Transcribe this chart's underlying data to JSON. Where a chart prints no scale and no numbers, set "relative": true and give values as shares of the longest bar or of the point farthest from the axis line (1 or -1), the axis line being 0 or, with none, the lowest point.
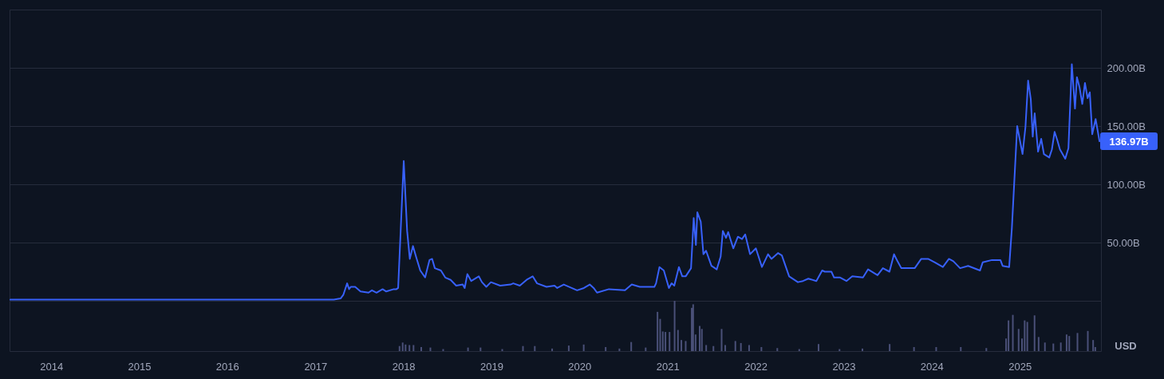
{
  "chart_data": [
    {
      "type": "line",
      "xlim": [
        "2013-07-29",
        "2025-11-17"
      ],
      "ylim": [
        0,
        250
      ],
      "yticks": [
        {
          "value": 50,
          "label": "50.00B"
        },
        {
          "value": 100,
          "label": "100.00B"
        },
        {
          "value": 150,
          "label": "150.00B"
        },
        {
          "value": 200,
          "label": "200.00B"
        }
      ],
      "grid": "y",
      "tick_labels": "y",
      "x": [
        "2013-08-01",
        "2014-06-01",
        "2015-01-01",
        "2016-01-01",
        "2016-09-01",
        "2017-03-25",
        "2017-04-22",
        "2017-05-03",
        "2017-05-19",
        "2017-05-27",
        "2017-06-03",
        "2017-06-21",
        "2017-07-13",
        "2017-08-15",
        "2017-08-29",
        "2017-09-17",
        "2017-10-12",
        "2017-10-27",
        "2017-11-27",
        "2017-12-08",
        "2017-12-15",
        "2018-01-07",
        "2018-01-21",
        "2018-02-01",
        "2018-02-14",
        "2018-02-28",
        "2018-03-16",
        "2018-04-05",
        "2018-04-23",
        "2018-05-04",
        "2018-05-15",
        "2018-06-09",
        "2018-06-27",
        "2018-07-19",
        "2018-08-11",
        "2018-09-07",
        "2018-09-15",
        "2018-09-26",
        "2018-10-12",
        "2018-11-12",
        "2018-11-25",
        "2018-12-13",
        "2019-01-01",
        "2019-02-08",
        "2019-03-23",
        "2019-04-03",
        "2019-04-30",
        "2019-05-28",
        "2019-06-22",
        "2019-07-10",
        "2019-08-18",
        "2019-09-20",
        "2019-10-01",
        "2019-10-28",
        "2019-12-22",
        "2020-01-19",
        "2020-02-12",
        "2020-02-28",
        "2020-03-13",
        "2020-05-01",
        "2020-07-06",
        "2020-08-03",
        "2020-09-05",
        "2020-11-04",
        "2020-11-11",
        "2020-11-25",
        "2020-12-13",
        "2021-01-03",
        "2021-01-14",
        "2021-01-25",
        "2021-02-13",
        "2021-02-27",
        "2021-03-13",
        "2021-04-04",
        "2021-04-15",
        "2021-04-24",
        "2021-04-30",
        "2021-05-14",
        "2021-05-25",
        "2021-06-05",
        "2021-06-27",
        "2021-07-19",
        "2021-08-04",
        "2021-08-13",
        "2021-08-26",
        "2021-09-04",
        "2021-09-25",
        "2021-10-14",
        "2021-10-31",
        "2021-11-13",
        "2021-12-03",
        "2021-12-27",
        "2022-01-21",
        "2022-02-15",
        "2022-03-01",
        "2022-03-28",
        "2022-04-13",
        "2022-05-13",
        "2022-06-18",
        "2022-07-09",
        "2022-07-31",
        "2022-09-02",
        "2022-09-26",
        "2022-10-07",
        "2022-11-03",
        "2022-11-14",
        "2022-12-09",
        "2023-01-04",
        "2023-01-28",
        "2023-03-13",
        "2023-04-03",
        "2023-05-12",
        "2023-06-03",
        "2023-06-30",
        "2023-07-19",
        "2023-08-02",
        "2023-08-18",
        "2023-10-12",
        "2023-11-08",
        "2023-12-06",
        "2024-01-03",
        "2024-02-05",
        "2024-03-01",
        "2024-03-19",
        "2024-04-16",
        "2024-05-19",
        "2024-07-07",
        "2024-07-18",
        "2024-08-25",
        "2024-09-29",
        "2024-10-08",
        "2024-11-04",
        "2024-11-15",
        "2024-12-07",
        "2024-12-29",
        "2025-01-10",
        "2025-01-21",
        "2025-02-01",
        "2025-02-09",
        "2025-02-17",
        "2025-03-03",
        "2025-03-16",
        "2025-03-27",
        "2025-04-18",
        "2025-04-29",
        "2025-05-10",
        "2025-05-21",
        "2025-06-01",
        "2025-06-23",
        "2025-07-06",
        "2025-07-20",
        "2025-08-02",
        "2025-08-10",
        "2025-08-21",
        "2025-09-01",
        "2025-09-12",
        "2025-09-23",
        "2025-10-02",
        "2025-10-12",
        "2025-10-26",
        "2025-11-11"
      ],
      "series": [
        {
          "color": "#3861fb",
          "values": [
            1,
            1,
            1,
            1,
            1,
            1,
            2,
            5,
            15,
            10,
            12,
            12,
            8,
            7,
            9,
            7,
            10,
            8,
            10,
            10,
            11,
            120,
            60,
            36,
            47,
            37,
            26,
            20,
            35,
            36,
            28,
            26,
            20,
            18,
            13,
            14,
            11,
            23,
            17,
            21,
            16,
            12,
            16,
            13,
            14,
            15,
            13,
            18,
            21,
            15,
            12,
            13,
            11,
            14,
            9,
            11,
            14,
            11,
            7,
            10,
            9,
            14,
            12,
            12,
            15,
            29,
            26,
            11,
            15,
            13,
            29,
            21,
            21,
            28,
            71,
            48,
            76,
            68,
            40,
            43,
            30,
            27,
            38,
            60,
            54,
            59,
            45,
            55,
            53,
            57,
            40,
            45,
            29,
            40,
            36,
            41,
            39,
            21,
            16,
            17,
            19,
            17,
            26,
            25,
            25,
            20,
            20,
            17,
            21,
            20,
            27,
            22,
            28,
            25,
            40,
            34,
            28,
            28,
            36,
            36,
            33,
            29,
            36,
            34,
            28,
            30,
            26,
            33,
            35,
            35,
            30,
            29,
            62,
            150,
            126,
            149,
            189,
            173,
            141,
            161,
            128,
            139,
            126,
            123,
            130,
            145,
            138,
            130,
            122,
            131,
            203,
            165,
            192,
            183,
            169,
            187,
            174,
            179,
            143,
            156,
            136.97
          ]
        }
      ],
      "annotations": [
        {
          "text": "136.97B",
          "x": "2025-11-11",
          "y": 136.97
        }
      ]
    },
    {
      "type": "bar",
      "relative": true,
      "xlim": [
        "2013-07-29",
        "2025-11-17"
      ],
      "xticks": [
        "2014",
        "2015",
        "2016",
        "2017",
        "2018",
        "2019",
        "2020",
        "2021",
        "2022",
        "2023",
        "2024",
        "2025"
      ],
      "x": [
        "2017-12-16",
        "2017-12-29",
        "2018-01-10",
        "2018-01-26",
        "2018-02-12",
        "2018-03-16",
        "2018-04-23",
        "2018-06-15",
        "2018-09-26",
        "2018-11-17",
        "2019-02-15",
        "2019-05-12",
        "2019-06-30",
        "2019-09-10",
        "2019-11-18",
        "2020-01-19",
        "2020-04-19",
        "2020-06-15",
        "2020-08-03",
        "2020-10-02",
        "2020-11-20",
        "2020-12-01",
        "2020-12-12",
        "2020-12-23",
        "2021-01-09",
        "2021-01-30",
        "2021-02-13",
        "2021-02-27",
        "2021-03-17",
        "2021-04-11",
        "2021-04-17",
        "2021-04-27",
        "2021-05-14",
        "2021-05-23",
        "2021-06-10",
        "2021-07-10",
        "2021-08-13",
        "2021-08-28",
        "2021-10-09",
        "2021-11-01",
        "2021-12-05",
        "2022-01-25",
        "2022-04-01",
        "2022-07-01",
        "2022-09-19",
        "2022-12-15",
        "2023-03-20",
        "2023-07-11",
        "2023-10-20",
        "2024-01-20",
        "2024-05-01",
        "2024-08-15",
        "2024-11-05",
        "2024-11-15",
        "2024-12-03",
        "2024-12-27",
        "2025-01-10",
        "2025-01-21",
        "2025-02-01",
        "2025-03-03",
        "2025-03-20",
        "2025-04-15",
        "2025-05-20",
        "2025-06-20",
        "2025-07-14",
        "2025-07-25",
        "2025-08-28",
        "2025-10-10",
        "2025-11-01",
        "2025-11-10"
      ],
      "series": [
        {
          "color": "#4a5078",
          "values": [
            0.1,
            0.17,
            0.13,
            0.12,
            0.12,
            0.08,
            0.07,
            0.04,
            0.07,
            0.07,
            0.04,
            0.1,
            0.1,
            0.05,
            0.11,
            0.13,
            0.08,
            0.05,
            0.18,
            0.07,
            0.78,
            0.64,
            0.39,
            0.38,
            0.38,
            1,
            0.42,
            0.22,
            0.2,
            0.86,
            0.93,
            0.33,
            0.5,
            0.44,
            0.12,
            0.1,
            0.44,
            0.12,
            0.2,
            0.16,
            0.12,
            0.08,
            0.06,
            0.04,
            0.14,
            0.04,
            0.05,
            0.14,
            0.08,
            0.08,
            0.08,
            0.06,
            0.25,
            0.61,
            0.72,
            0.44,
            0.25,
            0.61,
            0.58,
            0.71,
            0.28,
            0.17,
            0.15,
            0.17,
            0.33,
            0.3,
            0.36,
            0.4,
            0.22,
            0.08
          ]
        }
      ],
      "annotations": [
        "USD"
      ]
    }
  ]
}
